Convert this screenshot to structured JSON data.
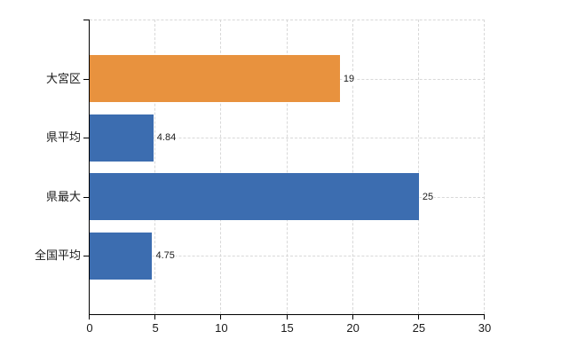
{
  "chart_data": {
    "type": "bar",
    "orientation": "horizontal",
    "title": "",
    "xlabel": "",
    "ylabel": "",
    "categories": [
      "大宮区",
      "県平均",
      "県最大",
      "全国平均"
    ],
    "values": [
      19,
      4.84,
      25,
      4.75
    ],
    "value_labels": [
      "19",
      "4.84",
      "25",
      "4.75"
    ],
    "highlight_index": 0,
    "xlim": [
      0,
      30
    ],
    "xticks": [
      0,
      5,
      10,
      15,
      20,
      25,
      30
    ],
    "xtick_labels": [
      "0",
      "5",
      "10",
      "15",
      "20",
      "25",
      "30"
    ],
    "grid": true,
    "legend": "none",
    "colors": {
      "highlight_bar": "#e8923e",
      "default_bar": "#3c6db0",
      "grid": "#d8d8d8",
      "axis": "#000000",
      "text": "#1a1a1a",
      "background": "#ffffff"
    }
  }
}
